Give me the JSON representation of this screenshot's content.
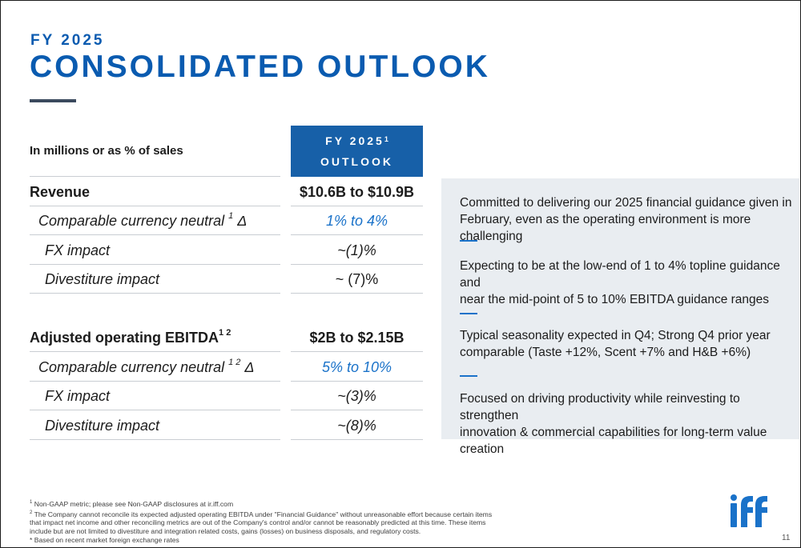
{
  "header": {
    "eyebrow": "FY 2025",
    "title": "CONSOLIDATED OUTLOOK"
  },
  "table": {
    "units_label": "In millions or as % of sales",
    "column_header_line1": "FY 2025",
    "column_header_sup": "1",
    "column_header_line2": "OUTLOOK",
    "rows": [
      {
        "label": "Revenue",
        "sup": "",
        "suffix": "",
        "value": "$10.6B to $10.9B"
      },
      {
        "label": "Comparable currency neutral ",
        "sup": "1",
        "suffix": " Δ",
        "value": "1% to 4%"
      },
      {
        "label": "FX impact",
        "sup": "",
        "suffix": "",
        "value": "~(1)%"
      },
      {
        "label": "Divestiture impact",
        "sup": "",
        "suffix": "",
        "value": "~ (7)%"
      },
      {
        "label": "Adjusted operating EBITDA",
        "sup": "1 2",
        "suffix": "",
        "value": "$2B to $2.15B"
      },
      {
        "label": "Comparable currency neutral ",
        "sup": "1 2",
        "suffix": " Δ",
        "value": "5% to 10%"
      },
      {
        "label": "FX impact",
        "sup": "",
        "suffix": "",
        "value": "~(3)%"
      },
      {
        "label": "Divestiture impact",
        "sup": "",
        "suffix": "",
        "value": "~(8)%"
      }
    ]
  },
  "commentary": [
    {
      "line1": "Committed to delivering our 2025 financial guidance given in",
      "line2": "February, even as the operating environment is more challenging"
    },
    {
      "line1": "Expecting to be at the low-end of 1 to 4% topline guidance and",
      "line2": "near the mid-point of 5 to 10% EBITDA guidance ranges"
    },
    {
      "line1": "Typical seasonality expected in Q4; Strong Q4 prior year",
      "line2": "comparable (Taste +12%, Scent +7% and H&B +6%)"
    },
    {
      "line1": "Focused on driving productivity while reinvesting to strengthen",
      "line2": "innovation & commercial capabilities for long-term value creation"
    }
  ],
  "footnotes": {
    "fn1_mark": "1",
    "fn1": " Non-GAAP metric; please see Non-GAAP disclosures at ir.iff.com",
    "fn2_mark": "2",
    "fn2": " The Company cannot reconcile its expected adjusted operating EBITDA under \"Financial Guidance\" without unreasonable effort because certain items that impact net income and other reconciling metrics are out of the Company's control and/or cannot be reasonably predicted at this time. These items include but are not limited to divestiture and integration related costs, gains (losses) on business disposals, and regulatory costs.",
    "fn3": "* Based on recent market foreign exchange rates"
  },
  "brand": {
    "logo_text": "iff",
    "color": "#1a72c9"
  },
  "page_number": "11"
}
